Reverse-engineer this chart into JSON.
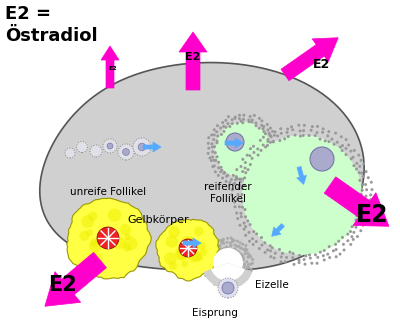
{
  "bg_color": "#ffffff",
  "ovary_color": "#d0d0d0",
  "ovary_edge": "#555555",
  "magenta": "#ff00cc",
  "blue_arrow": "#55aaff",
  "yellow": "#ffff44",
  "green_fluid": "#ccffcc",
  "light_blue_nucleus": "#aaaacc",
  "red_center": "#ee2222",
  "label_unreife": "unreife Follikel",
  "label_reifender": "reifender\nFollikel",
  "label_gelb": "Gelbkörper",
  "label_eizelle": "Eizelle",
  "label_eisprung": "Eisprung",
  "label_e2_legend": "E2 =\nÖstradiol",
  "label_e2": "E2"
}
